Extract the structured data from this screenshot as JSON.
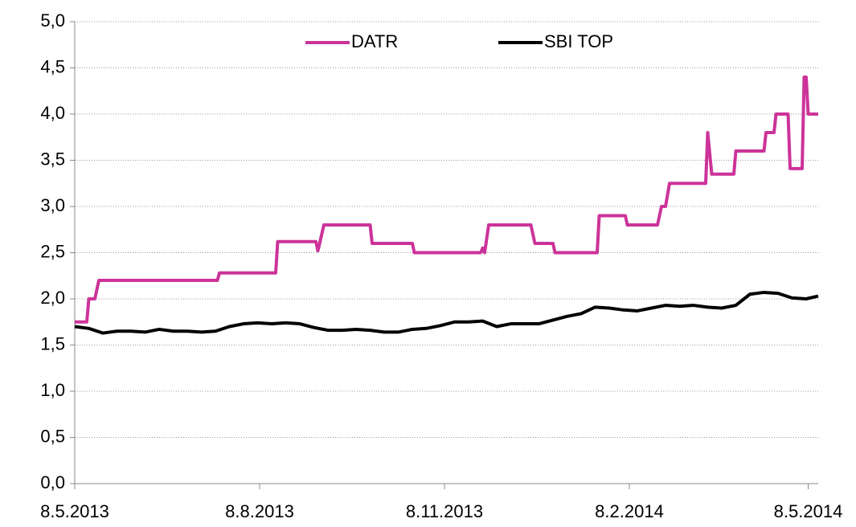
{
  "chart_data": {
    "type": "line",
    "legend": "top",
    "grid": true,
    "xlim": [
      "2013-05-08",
      "2014-05-13"
    ],
    "xticks": [
      {
        "value": "2013-05-08",
        "label": "8.5.2013"
      },
      {
        "value": "2013-08-08",
        "label": "8.8.2013"
      },
      {
        "value": "2013-11-08",
        "label": "8.11.2013"
      },
      {
        "value": "2014-02-08",
        "label": "8.2.2014"
      },
      {
        "value": "2014-05-08",
        "label": "8.5.2014"
      }
    ],
    "ylim": [
      0,
      5
    ],
    "yticks": [
      {
        "value": 0,
        "label": "0,0"
      },
      {
        "value": 0.5,
        "label": "0,5"
      },
      {
        "value": 1,
        "label": "1,0"
      },
      {
        "value": 1.5,
        "label": "1,5"
      },
      {
        "value": 2,
        "label": "2,0"
      },
      {
        "value": 2.5,
        "label": "2,5"
      },
      {
        "value": 3,
        "label": "3,0"
      },
      {
        "value": 3.5,
        "label": "3,5"
      },
      {
        "value": 4,
        "label": "4,0"
      },
      {
        "value": 4.5,
        "label": "4,5"
      },
      {
        "value": 5,
        "label": "5,0"
      }
    ],
    "series": [
      {
        "name": "DATR",
        "color": "#cc3399",
        "x": [
          "2013-05-08",
          "2013-05-14",
          "2013-05-15",
          "2013-05-18",
          "2013-05-20",
          "2013-07-18",
          "2013-07-19",
          "2013-08-16",
          "2013-08-17",
          "2013-09-05",
          "2013-09-06",
          "2013-09-09",
          "2013-10-02",
          "2013-10-03",
          "2013-10-23",
          "2013-10-24",
          "2013-11-26",
          "2013-11-27",
          "2013-11-28",
          "2013-11-30",
          "2013-12-21",
          "2013-12-23",
          "2014-01-01",
          "2014-01-02",
          "2014-01-23",
          "2014-01-24",
          "2014-02-06",
          "2014-02-07",
          "2014-02-22",
          "2014-02-24",
          "2014-02-26",
          "2014-02-28",
          "2014-03-18",
          "2014-03-19",
          "2014-03-21",
          "2014-04-01",
          "2014-04-02",
          "2014-04-16",
          "2014-04-17",
          "2014-04-21",
          "2014-04-22",
          "2014-04-28",
          "2014-04-29",
          "2014-05-05",
          "2014-05-06",
          "2014-05-07",
          "2014-05-08",
          "2014-05-13"
        ],
        "values": [
          1.75,
          1.75,
          2.0,
          2.0,
          2.2,
          2.2,
          2.28,
          2.28,
          2.62,
          2.62,
          2.52,
          2.8,
          2.8,
          2.6,
          2.6,
          2.5,
          2.5,
          2.55,
          2.5,
          2.8,
          2.8,
          2.6,
          2.6,
          2.5,
          2.5,
          2.9,
          2.9,
          2.8,
          2.8,
          3.0,
          3.0,
          3.25,
          3.25,
          3.8,
          3.35,
          3.35,
          3.6,
          3.6,
          3.8,
          3.8,
          4.0,
          4.0,
          3.41,
          3.41,
          4.4,
          4.4,
          4.0,
          4.0
        ]
      },
      {
        "name": "SBI TOP",
        "color": "#000000",
        "x": [
          "2013-05-08",
          "2013-05-15",
          "2013-05-22",
          "2013-05-29",
          "2013-06-05",
          "2013-06-12",
          "2013-06-19",
          "2013-06-26",
          "2013-07-03",
          "2013-07-10",
          "2013-07-17",
          "2013-07-24",
          "2013-07-31",
          "2013-08-07",
          "2013-08-14",
          "2013-08-21",
          "2013-08-28",
          "2013-09-04",
          "2013-09-11",
          "2013-09-18",
          "2013-09-25",
          "2013-10-02",
          "2013-10-09",
          "2013-10-16",
          "2013-10-23",
          "2013-10-30",
          "2013-11-06",
          "2013-11-13",
          "2013-11-20",
          "2013-11-27",
          "2013-12-04",
          "2013-12-11",
          "2013-12-18",
          "2013-12-25",
          "2014-01-01",
          "2014-01-08",
          "2014-01-15",
          "2014-01-22",
          "2014-01-29",
          "2014-02-05",
          "2014-02-12",
          "2014-02-19",
          "2014-02-26",
          "2014-03-05",
          "2014-03-12",
          "2014-03-19",
          "2014-03-26",
          "2014-04-02",
          "2014-04-09",
          "2014-04-16",
          "2014-04-23",
          "2014-04-30",
          "2014-05-07",
          "2014-05-13"
        ],
        "values": [
          1.7,
          1.68,
          1.63,
          1.65,
          1.65,
          1.64,
          1.67,
          1.65,
          1.65,
          1.64,
          1.65,
          1.7,
          1.73,
          1.74,
          1.73,
          1.74,
          1.73,
          1.69,
          1.66,
          1.66,
          1.67,
          1.66,
          1.64,
          1.64,
          1.67,
          1.68,
          1.71,
          1.75,
          1.75,
          1.76,
          1.7,
          1.73,
          1.73,
          1.73,
          1.77,
          1.81,
          1.84,
          1.91,
          1.9,
          1.88,
          1.87,
          1.9,
          1.93,
          1.92,
          1.93,
          1.91,
          1.9,
          1.93,
          2.05,
          2.07,
          2.06,
          2.01,
          2.0,
          2.03
        ]
      }
    ]
  }
}
